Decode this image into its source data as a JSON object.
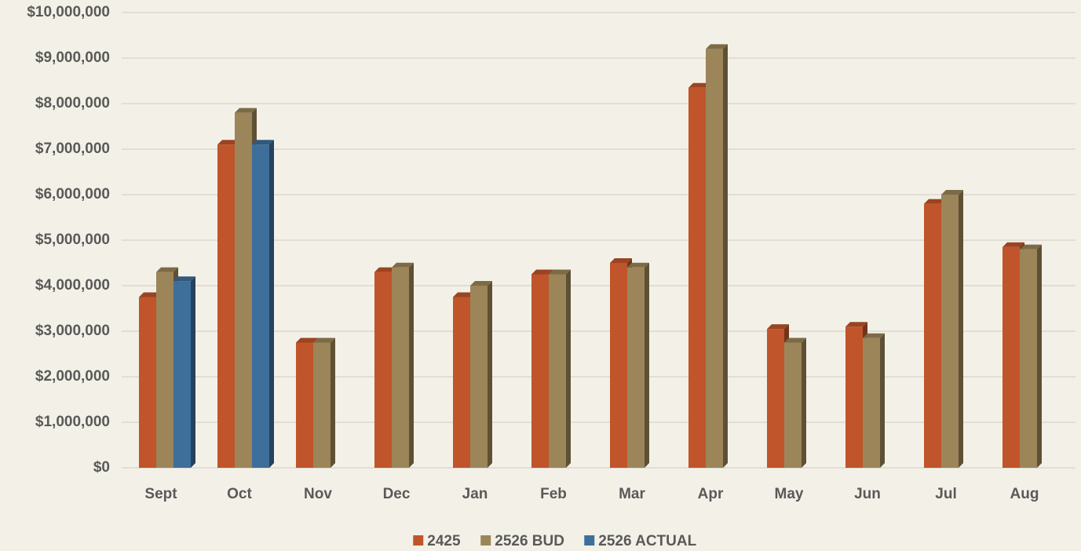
{
  "chart_data": {
    "type": "bar",
    "categories": [
      "Sept",
      "Oct",
      "Nov",
      "Dec",
      "Jan",
      "Feb",
      "Mar",
      "Apr",
      "May",
      "Jun",
      "Jul",
      "Aug"
    ],
    "series": [
      {
        "name": "2425",
        "color": "#c0552b",
        "values": [
          3750000,
          7100000,
          2750000,
          4300000,
          3750000,
          4250000,
          4500000,
          8350000,
          3050000,
          3100000,
          5800000,
          4850000
        ]
      },
      {
        "name": "2526 BUD",
        "color": "#9c8559",
        "values": [
          4300000,
          7800000,
          2750000,
          4400000,
          4000000,
          4250000,
          4400000,
          9200000,
          2750000,
          2850000,
          6000000,
          4800000
        ]
      },
      {
        "name": "2526 ACTUAL",
        "color": "#3e6e9a",
        "values": [
          4100000,
          7100000,
          null,
          null,
          null,
          null,
          null,
          null,
          null,
          null,
          null,
          null
        ]
      }
    ],
    "ylim": [
      0,
      10000000
    ],
    "yticks": [
      {
        "value": 0,
        "label": "$0"
      },
      {
        "value": 1000000,
        "label": "$1,000,000"
      },
      {
        "value": 2000000,
        "label": "$2,000,000"
      },
      {
        "value": 3000000,
        "label": "$3,000,000"
      },
      {
        "value": 4000000,
        "label": "$4,000,000"
      },
      {
        "value": 5000000,
        "label": "$5,000,000"
      },
      {
        "value": 6000000,
        "label": "$6,000,000"
      },
      {
        "value": 7000000,
        "label": "$7,000,000"
      },
      {
        "value": 8000000,
        "label": "$8,000,000"
      },
      {
        "value": 9000000,
        "label": "$9,000,000"
      },
      {
        "value": 10000000,
        "label": "$10,000,000"
      }
    ],
    "grid": true,
    "legend": "bottom"
  }
}
